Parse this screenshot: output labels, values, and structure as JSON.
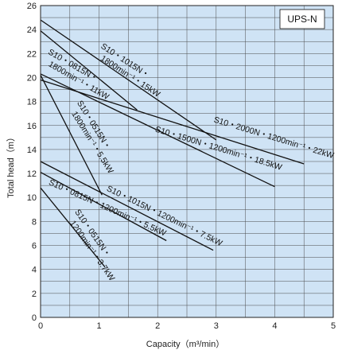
{
  "chart_data": {
    "type": "line",
    "title": "",
    "badge": "UPS-N",
    "xlabel": "Capacity（m³/min）",
    "ylabel": "Total head（m）",
    "xlim": [
      0,
      5
    ],
    "ylim": [
      0,
      26
    ],
    "xticks": [
      "0",
      "1",
      "2",
      "3",
      "4",
      "5"
    ],
    "yticks": [
      "0",
      "2",
      "4",
      "6",
      "8",
      "10",
      "12",
      "14",
      "16",
      "18",
      "20",
      "22",
      "24",
      "26"
    ],
    "grid": true,
    "background": "#cfe3f5",
    "gridColor": "#4a4a4a",
    "lineColor": "#111111",
    "series": [
      {
        "label": "S10・2000N・1200min⁻¹・22kW",
        "points": [
          [
            0,
            19.8
          ],
          [
            4.5,
            12.8
          ]
        ]
      },
      {
        "label": "S10・1500N・1200min⁻¹・18.5kW",
        "points": [
          [
            0,
            20.3
          ],
          [
            4.0,
            10.9
          ]
        ]
      },
      {
        "label": "S10・1015N・1800min⁻¹・15kW",
        "points": [
          [
            0,
            24.8
          ],
          [
            3.0,
            14.8
          ]
        ]
      },
      {
        "label": "S10・0815N・1800min⁻¹・11kW",
        "points": [
          [
            0,
            23.9
          ],
          [
            1.65,
            17.3
          ]
        ]
      },
      {
        "label": "S10・0515N・1800min⁻¹・5.5kW",
        "points": [
          [
            0,
            20.2
          ],
          [
            1.05,
            10.2
          ]
        ]
      },
      {
        "label": "S10・1015N・1200min⁻¹・7.5kW",
        "points": [
          [
            0,
            13.0
          ],
          [
            2.95,
            5.6
          ]
        ]
      },
      {
        "label": "S10・0815N・1200min⁻¹・5.5kW",
        "points": [
          [
            0,
            12.1
          ],
          [
            2.15,
            6.4
          ]
        ]
      },
      {
        "label": "S10・0515N・1200min⁻¹・3.7kW",
        "points": [
          [
            0,
            10.8
          ],
          [
            1.1,
            4.2
          ]
        ]
      }
    ]
  }
}
